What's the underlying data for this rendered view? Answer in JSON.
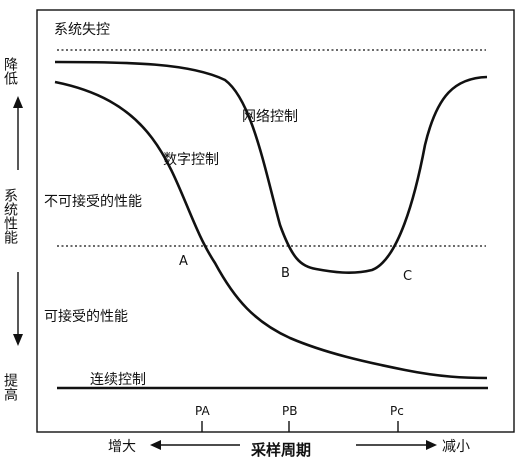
{
  "chart_data": {
    "type": "line",
    "title": "",
    "xlabel": "采样周期",
    "ylabel": "系统性能",
    "x_left_label": "增大",
    "x_right_label": "减小",
    "y_top_label": "降低",
    "y_bottom_label": "提高",
    "y_top_line_label": "系统失控",
    "y_bottom_line_label": "连续控制",
    "region_upper_label": "不可接受的性能",
    "region_lower_label": "可接受的性能",
    "x_ticks": [
      "PA",
      "PB",
      "Pc"
    ],
    "series": [
      {
        "name": "网络控制"
      },
      {
        "name": "数字控制"
      },
      {
        "name": "连续控制"
      }
    ],
    "points": [
      {
        "label": "A"
      },
      {
        "label": "B"
      },
      {
        "label": "C"
      }
    ]
  },
  "colors": {
    "ink": "#111111",
    "background": "#ffffff"
  }
}
